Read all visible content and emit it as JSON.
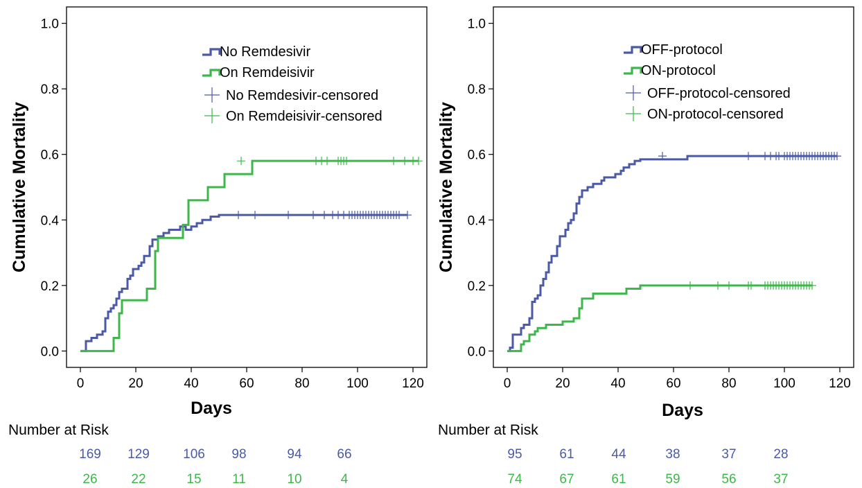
{
  "colors": {
    "blue": "#4a5aa8",
    "green": "#3cb84a",
    "axis": "#000000"
  },
  "chart_data": [
    {
      "type": "line",
      "step": true,
      "xlabel": "Days",
      "ylabel": "Cumulative Mortality",
      "xlim": [
        -5,
        125
      ],
      "ylim": [
        -0.05,
        1.05
      ],
      "xticks": [
        0,
        20,
        40,
        60,
        80,
        100,
        120
      ],
      "xtick_labels": [
        "0",
        "20",
        "40",
        "60",
        "80",
        "100",
        "120"
      ],
      "yticks": [
        0.0,
        0.2,
        0.4,
        0.6,
        0.8,
        1.0
      ],
      "ytick_labels": [
        "0.0",
        "0.2",
        "0.4",
        "0.6",
        "0.8",
        "1.0"
      ],
      "legend": [
        "No Remdesivir",
        "On Remdeisivir",
        "No Remdesivir-censored",
        "On Remdeisivir-censored"
      ],
      "series": [
        {
          "name": "No Remdesivir",
          "color": "#4a5aa8",
          "points": [
            [
              0,
              0
            ],
            [
              2,
              0
            ],
            [
              2,
              0.03
            ],
            [
              4,
              0.03
            ],
            [
              4,
              0.04
            ],
            [
              6,
              0.04
            ],
            [
              6,
              0.05
            ],
            [
              8,
              0.05
            ],
            [
              8,
              0.06
            ],
            [
              9,
              0.06
            ],
            [
              9,
              0.1
            ],
            [
              10,
              0.1
            ],
            [
              10,
              0.12
            ],
            [
              11,
              0.12
            ],
            [
              11,
              0.13
            ],
            [
              12,
              0.13
            ],
            [
              12,
              0.14
            ],
            [
              13,
              0.14
            ],
            [
              13,
              0.16
            ],
            [
              14,
              0.16
            ],
            [
              14,
              0.18
            ],
            [
              15,
              0.18
            ],
            [
              15,
              0.19
            ],
            [
              17,
              0.19
            ],
            [
              17,
              0.22
            ],
            [
              18,
              0.22
            ],
            [
              18,
              0.23
            ],
            [
              19,
              0.23
            ],
            [
              19,
              0.25
            ],
            [
              21,
              0.25
            ],
            [
              21,
              0.26
            ],
            [
              22,
              0.26
            ],
            [
              22,
              0.27
            ],
            [
              23,
              0.27
            ],
            [
              23,
              0.29
            ],
            [
              25,
              0.29
            ],
            [
              25,
              0.32
            ],
            [
              26,
              0.32
            ],
            [
              26,
              0.34
            ],
            [
              28,
              0.34
            ],
            [
              28,
              0.35
            ],
            [
              30,
              0.35
            ],
            [
              30,
              0.36
            ],
            [
              32,
              0.36
            ],
            [
              32,
              0.37
            ],
            [
              36,
              0.37
            ],
            [
              36,
              0.38
            ],
            [
              38,
              0.38
            ],
            [
              38,
              0.37
            ],
            [
              40,
              0.37
            ],
            [
              40,
              0.38
            ],
            [
              42,
              0.38
            ],
            [
              42,
              0.39
            ],
            [
              44,
              0.39
            ],
            [
              44,
              0.4
            ],
            [
              47,
              0.4
            ],
            [
              47,
              0.41
            ],
            [
              50,
              0.41
            ],
            [
              50,
              0.415
            ],
            [
              118,
              0.415
            ]
          ],
          "censored_x": [
            57,
            63,
            75,
            84,
            88,
            91,
            93,
            95,
            97,
            98,
            99,
            100,
            101,
            102,
            103,
            104,
            105,
            106,
            107,
            108,
            109,
            110,
            111,
            112,
            113,
            114,
            115,
            118
          ],
          "censored_y": 0.415
        },
        {
          "name": "On Remdeisivir",
          "color": "#3cb84a",
          "points": [
            [
              0,
              0
            ],
            [
              12,
              0
            ],
            [
              12,
              0.04
            ],
            [
              14,
              0.04
            ],
            [
              14,
              0.115
            ],
            [
              15,
              0.115
            ],
            [
              15,
              0.155
            ],
            [
              24,
              0.155
            ],
            [
              24,
              0.19
            ],
            [
              27,
              0.19
            ],
            [
              27,
              0.305
            ],
            [
              28,
              0.305
            ],
            [
              28,
              0.345
            ],
            [
              37,
              0.345
            ],
            [
              37,
              0.385
            ],
            [
              39,
              0.385
            ],
            [
              39,
              0.46
            ],
            [
              46,
              0.46
            ],
            [
              46,
              0.5
            ],
            [
              52,
              0.5
            ],
            [
              52,
              0.54
            ],
            [
              62,
              0.54
            ],
            [
              62,
              0.58
            ],
            [
              122,
              0.58
            ]
          ],
          "censored_x": [
            58,
            85,
            87,
            89,
            93,
            94,
            95,
            96,
            113,
            117,
            120,
            122
          ],
          "censored_y": 0.58
        }
      ],
      "number_at_risk": {
        "title": "Number at Risk",
        "rows": [
          {
            "series": "No Remdesivir",
            "values": [
              "169",
              "129",
              "106",
              "98",
              "94",
              "66"
            ]
          },
          {
            "series": "On Remdeisivir",
            "values": [
              "26",
              "22",
              "15",
              "11",
              "10",
              "4"
            ]
          }
        ]
      }
    },
    {
      "type": "line",
      "step": true,
      "xlabel": "Days",
      "ylabel": "Cumulative Mortality",
      "xlim": [
        -5,
        125
      ],
      "ylim": [
        -0.05,
        1.05
      ],
      "xticks": [
        0,
        20,
        40,
        60,
        80,
        100,
        120
      ],
      "xtick_labels": [
        "0",
        "20",
        "40",
        "60",
        "80",
        "100",
        "120"
      ],
      "yticks": [
        0.0,
        0.2,
        0.4,
        0.6,
        0.8,
        1.0
      ],
      "ytick_labels": [
        "0.0",
        "0.2",
        "0.4",
        "0.6",
        "0.8",
        "1.0"
      ],
      "legend": [
        "OFF-protocol",
        "ON-protocol",
        "OFF-protocol-censored",
        "ON-protocol-censored"
      ],
      "series": [
        {
          "name": "OFF-protocol",
          "color": "#4a5aa8",
          "points": [
            [
              0,
              0
            ],
            [
              1,
              0
            ],
            [
              1,
              0.01
            ],
            [
              2,
              0.01
            ],
            [
              2,
              0.05
            ],
            [
              5,
              0.05
            ],
            [
              5,
              0.07
            ],
            [
              6,
              0.07
            ],
            [
              6,
              0.08
            ],
            [
              8,
              0.08
            ],
            [
              8,
              0.1
            ],
            [
              9,
              0.1
            ],
            [
              9,
              0.15
            ],
            [
              10,
              0.15
            ],
            [
              10,
              0.16
            ],
            [
              11,
              0.16
            ],
            [
              11,
              0.17
            ],
            [
              12,
              0.17
            ],
            [
              12,
              0.2
            ],
            [
              13,
              0.2
            ],
            [
              13,
              0.22
            ],
            [
              14,
              0.22
            ],
            [
              14,
              0.24
            ],
            [
              15,
              0.24
            ],
            [
              15,
              0.27
            ],
            [
              16,
              0.27
            ],
            [
              16,
              0.29
            ],
            [
              18,
              0.29
            ],
            [
              18,
              0.32
            ],
            [
              19,
              0.32
            ],
            [
              19,
              0.35
            ],
            [
              21,
              0.35
            ],
            [
              21,
              0.37
            ],
            [
              22,
              0.37
            ],
            [
              22,
              0.39
            ],
            [
              23,
              0.39
            ],
            [
              23,
              0.4
            ],
            [
              24,
              0.4
            ],
            [
              24,
              0.42
            ],
            [
              25,
              0.42
            ],
            [
              25,
              0.45
            ],
            [
              26,
              0.45
            ],
            [
              26,
              0.47
            ],
            [
              27,
              0.47
            ],
            [
              27,
              0.49
            ],
            [
              29,
              0.49
            ],
            [
              29,
              0.5
            ],
            [
              31,
              0.5
            ],
            [
              31,
              0.51
            ],
            [
              34,
              0.51
            ],
            [
              34,
              0.52
            ],
            [
              35,
              0.52
            ],
            [
              35,
              0.53
            ],
            [
              39,
              0.53
            ],
            [
              39,
              0.54
            ],
            [
              41,
              0.54
            ],
            [
              41,
              0.55
            ],
            [
              42,
              0.55
            ],
            [
              42,
              0.56
            ],
            [
              44,
              0.56
            ],
            [
              44,
              0.57
            ],
            [
              46,
              0.57
            ],
            [
              46,
              0.58
            ],
            [
              48,
              0.58
            ],
            [
              48,
              0.585
            ],
            [
              65,
              0.585
            ],
            [
              65,
              0.595
            ],
            [
              119,
              0.595
            ]
          ],
          "censored_x": [
            56,
            87,
            93,
            95,
            97,
            98,
            100,
            101,
            102,
            103,
            104,
            105,
            106,
            107,
            108,
            109,
            110,
            111,
            112,
            113,
            114,
            115,
            116,
            117,
            118,
            119
          ],
          "censored_y": 0.595
        },
        {
          "name": "ON-protocol",
          "color": "#3cb84a",
          "points": [
            [
              0,
              0
            ],
            [
              5,
              0
            ],
            [
              5,
              0.02
            ],
            [
              6,
              0.02
            ],
            [
              6,
              0.03
            ],
            [
              8,
              0.03
            ],
            [
              8,
              0.05
            ],
            [
              10,
              0.05
            ],
            [
              10,
              0.06
            ],
            [
              11,
              0.06
            ],
            [
              11,
              0.07
            ],
            [
              14,
              0.07
            ],
            [
              14,
              0.08
            ],
            [
              20,
              0.08
            ],
            [
              20,
              0.09
            ],
            [
              24,
              0.09
            ],
            [
              24,
              0.1
            ],
            [
              26,
              0.1
            ],
            [
              26,
              0.13
            ],
            [
              27,
              0.13
            ],
            [
              27,
              0.16
            ],
            [
              31,
              0.16
            ],
            [
              31,
              0.175
            ],
            [
              43,
              0.175
            ],
            [
              43,
              0.19
            ],
            [
              48,
              0.19
            ],
            [
              48,
              0.2
            ],
            [
              110,
              0.2
            ]
          ],
          "censored_x": [
            66,
            76,
            80,
            87,
            88,
            93,
            94,
            95,
            96,
            97,
            98,
            99,
            100,
            101,
            102,
            103,
            104,
            105,
            106,
            107,
            108,
            109,
            110
          ],
          "censored_y": 0.2
        }
      ],
      "number_at_risk": {
        "title": "Number at Risk",
        "rows": [
          {
            "series": "OFF-protocol",
            "values": [
              "95",
              "61",
              "44",
              "38",
              "37",
              "28"
            ]
          },
          {
            "series": "ON-protocol",
            "values": [
              "74",
              "67",
              "61",
              "59",
              "56",
              "37"
            ]
          }
        ]
      }
    }
  ]
}
